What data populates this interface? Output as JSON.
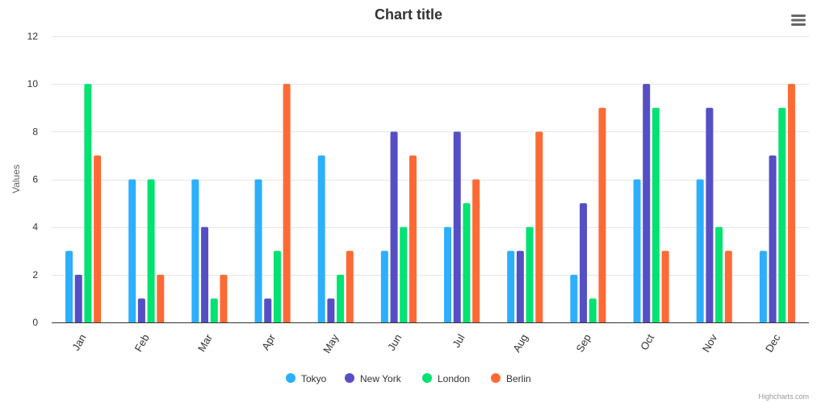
{
  "chart_data": {
    "type": "bar",
    "title": "Chart title",
    "xlabel": "",
    "ylabel": "Values",
    "ylim": [
      0,
      12
    ],
    "yticks": [
      0,
      2,
      4,
      6,
      8,
      10,
      12
    ],
    "grid": true,
    "legend_position": "bottom-center",
    "categories": [
      "Jan",
      "Feb",
      "Mar",
      "Apr",
      "May",
      "Jun",
      "Jul",
      "Aug",
      "Sep",
      "Oct",
      "Nov",
      "Dec"
    ],
    "series": [
      {
        "name": "Tokyo",
        "color": "#2caffe",
        "values": [
          3,
          6,
          6,
          6,
          7,
          3,
          4,
          3,
          2,
          6,
          6,
          3
        ]
      },
      {
        "name": "New York",
        "color": "#544fc5",
        "values": [
          2,
          1,
          4,
          1,
          1,
          8,
          8,
          3,
          5,
          10,
          9,
          7
        ]
      },
      {
        "name": "London",
        "color": "#00e272",
        "values": [
          10,
          6,
          1,
          3,
          2,
          4,
          5,
          4,
          1,
          9,
          4,
          9
        ]
      },
      {
        "name": "Berlin",
        "color": "#fe6a35",
        "values": [
          7,
          2,
          2,
          10,
          3,
          7,
          6,
          8,
          9,
          3,
          3,
          10
        ]
      }
    ]
  },
  "credits": "Highcharts.com",
  "menu_icon": "hamburger-menu-icon"
}
